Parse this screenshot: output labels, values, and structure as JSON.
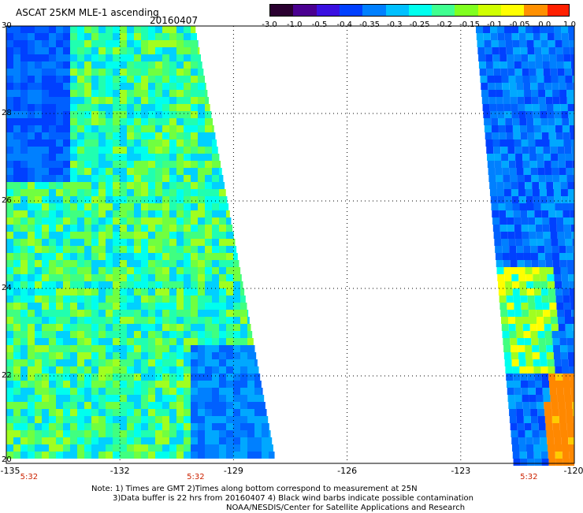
{
  "header": {
    "title": "ASCAT 25KM MLE-1 ascending",
    "date": "20160407"
  },
  "colorbar": {
    "tick_labels": [
      "-3.0",
      "-1.0",
      "-0.5",
      "-0.4",
      "-0.35",
      "-0.3",
      "-0.25",
      "-0.2",
      "-0.15",
      "-0.1",
      "-0.05",
      "0.0",
      "1.0"
    ],
    "colors": [
      "#2a0030",
      "#4a0090",
      "#3a10e0",
      "#0040ff",
      "#0080ff",
      "#00c0ff",
      "#00ffee",
      "#40ff90",
      "#80ff20",
      "#d0ff00",
      "#ffff00",
      "#ff9000",
      "#ff2000"
    ]
  },
  "axes": {
    "x_ticks": [
      "-135",
      "-132",
      "-129",
      "-126",
      "-123",
      "-120"
    ],
    "y_ticks": [
      "30",
      "28",
      "26",
      "24",
      "22",
      "20"
    ],
    "x_range": [
      -135,
      -120
    ],
    "y_range": [
      20,
      30
    ]
  },
  "time_labels": [
    {
      "text": "5:32",
      "lon": -134.4
    },
    {
      "text": "5:32",
      "lon": -130.0
    },
    {
      "text": "5:32",
      "lon": -121.2
    }
  ],
  "notes": {
    "line1": "Note: 1) Times are GMT 2)Times along bottom correspond to measurement at 25N",
    "line2": "3)Data buffer is 22 hrs from 20160407 4) Black wind barbs indicate possible contamination",
    "line3": "NOAA/NESDIS/Center for Satellite Applications and Research"
  },
  "swaths": [
    {
      "name": "west-swath",
      "lon_left": -135,
      "lat_top": 30,
      "lat_bottom": 20.2,
      "edge_top": -130.0,
      "edge_bottom": -127.9
    },
    {
      "name": "east-swath",
      "lat_top": 30,
      "lat_bottom": 20,
      "edge_top": -122.6,
      "edge_bottom": -121.6
    }
  ]
}
